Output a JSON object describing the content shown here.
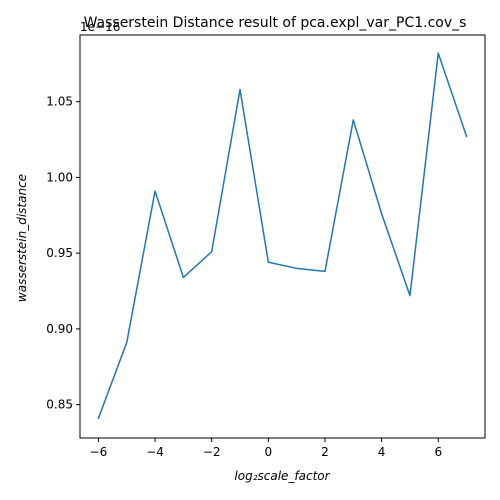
{
  "chart_data": {
    "type": "line",
    "title": "Wasserstein Distance result of pca.expl_var_PC1.cov_s",
    "xlabel": "log₂scale_factor",
    "ylabel": "wasserstein_distance",
    "offset_label": "1e−16",
    "xlim": [
      -6.65,
      7.65
    ],
    "ylim": [
      0.828,
      1.094
    ],
    "x_ticks": [
      -6,
      -4,
      -2,
      0,
      2,
      4,
      6
    ],
    "x_tick_labels": [
      "−6",
      "−4",
      "−2",
      "0",
      "2",
      "4",
      "6"
    ],
    "y_ticks": [
      0.85,
      0.9,
      0.95,
      1.0,
      1.05
    ],
    "y_tick_labels": [
      "0.85",
      "0.90",
      "0.95",
      "1.00",
      "1.05"
    ],
    "grid": false,
    "series": [
      {
        "color": "#1f77b4",
        "x": [
          -6,
          -5,
          -4,
          -3,
          -2,
          -1,
          0,
          1,
          2,
          3,
          4,
          5,
          6,
          7
        ],
        "y": [
          0.841,
          0.891,
          0.991,
          0.934,
          0.951,
          1.058,
          0.944,
          0.94,
          0.938,
          1.038,
          0.976,
          0.922,
          1.082,
          1.027
        ]
      }
    ]
  }
}
